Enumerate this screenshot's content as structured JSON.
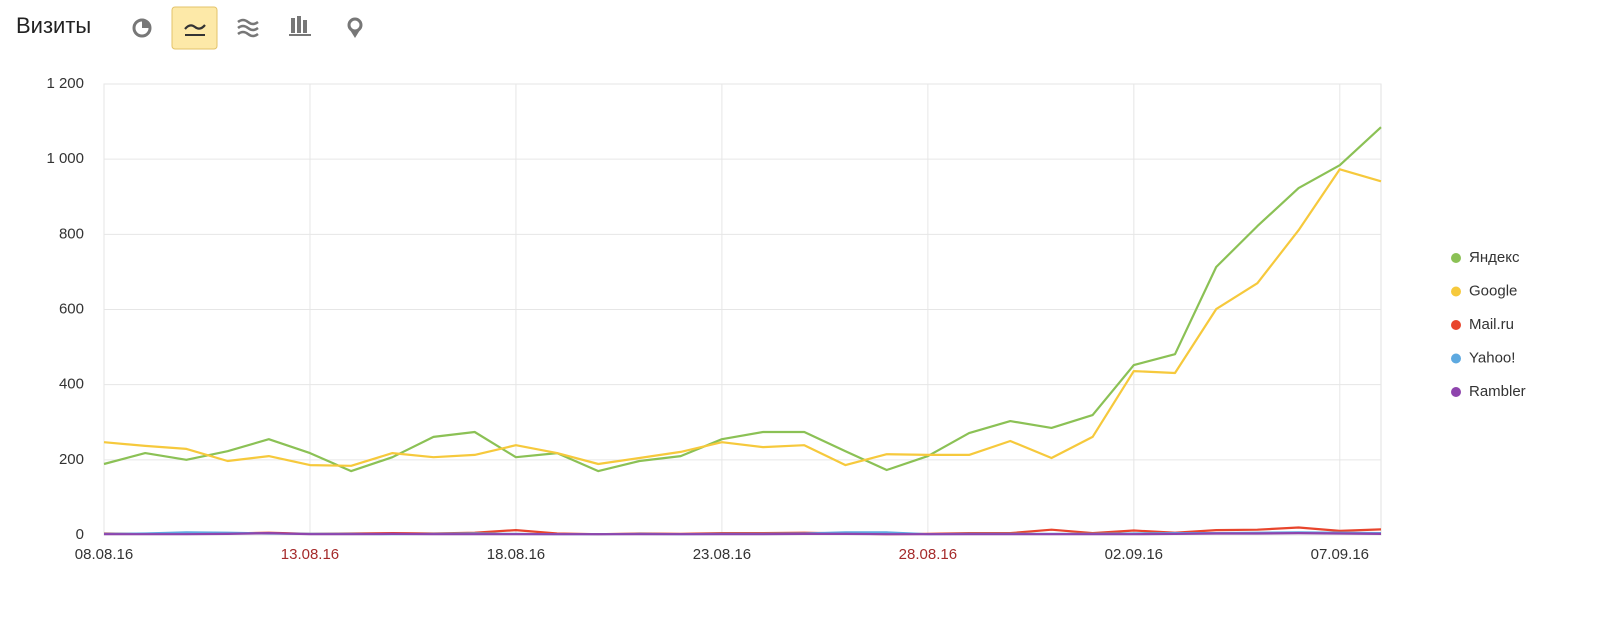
{
  "chart_data": {
    "type": "line",
    "title": "Визиты",
    "categories": [
      "08.08.16",
      null,
      null,
      null,
      null,
      "13.08.16",
      null,
      null,
      null,
      null,
      "18.08.16",
      null,
      null,
      null,
      null,
      "23.08.16",
      null,
      null,
      null,
      null,
      "28.08.16",
      null,
      null,
      null,
      null,
      "02.09.16",
      null,
      null,
      null,
      null,
      "07.09.16",
      null
    ],
    "accent_categories": [
      5,
      20
    ],
    "accent_color": "#a52a2a",
    "ylim": [
      0,
      1200
    ],
    "yticks": [
      0,
      200,
      400,
      600,
      800,
      {
        "value": 1000,
        "label": "1 000"
      },
      {
        "value": 1200,
        "label": "1 200"
      }
    ],
    "grid": true,
    "legend": "right",
    "series": [
      {
        "name": "Яндекс",
        "color": "#8bc155",
        "values": [
          189,
          218,
          200,
          223,
          255,
          218,
          170,
          207,
          261,
          274,
          207,
          218,
          170,
          197,
          210,
          255,
          274,
          274,
          223,
          173,
          210,
          271,
          303,
          285,
          319,
          452,
          481,
          713,
          822,
          923,
          984,
          1085
        ]
      },
      {
        "name": "Google",
        "color": "#f6c93c",
        "values": [
          247,
          237,
          229,
          197,
          210,
          186,
          184,
          218,
          207,
          213,
          239,
          218,
          189,
          205,
          221,
          247,
          234,
          239,
          186,
          215,
          213,
          213,
          250,
          205,
          261,
          436,
          431,
          601,
          670,
          811,
          973,
          941
        ]
      },
      {
        "name": "Mail.ru",
        "color": "#e8452c",
        "values": [
          4,
          3,
          3,
          4,
          6,
          3,
          4,
          5,
          4,
          6,
          13,
          4,
          2,
          4,
          3,
          5,
          5,
          6,
          4,
          2,
          3,
          5,
          5,
          14,
          5,
          12,
          6,
          13,
          14,
          20,
          11,
          15
        ]
      },
      {
        "name": "Yahoo!",
        "color": "#5da9e0",
        "values": [
          3,
          4,
          7,
          6,
          4,
          3,
          3,
          2,
          3,
          4,
          3,
          2,
          2,
          3,
          2,
          3,
          3,
          4,
          7,
          7,
          2,
          3,
          3,
          3,
          3,
          4,
          5,
          5,
          6,
          7,
          6,
          5
        ]
      },
      {
        "name": "Rambler",
        "color": "#8e44ad",
        "values": [
          2,
          2,
          2,
          3,
          5,
          2,
          2,
          3,
          2,
          2,
          2,
          2,
          2,
          2,
          2,
          2,
          2,
          3,
          3,
          2,
          2,
          2,
          2,
          2,
          2,
          2,
          3,
          4,
          4,
          5,
          4,
          3
        ]
      }
    ]
  }
}
